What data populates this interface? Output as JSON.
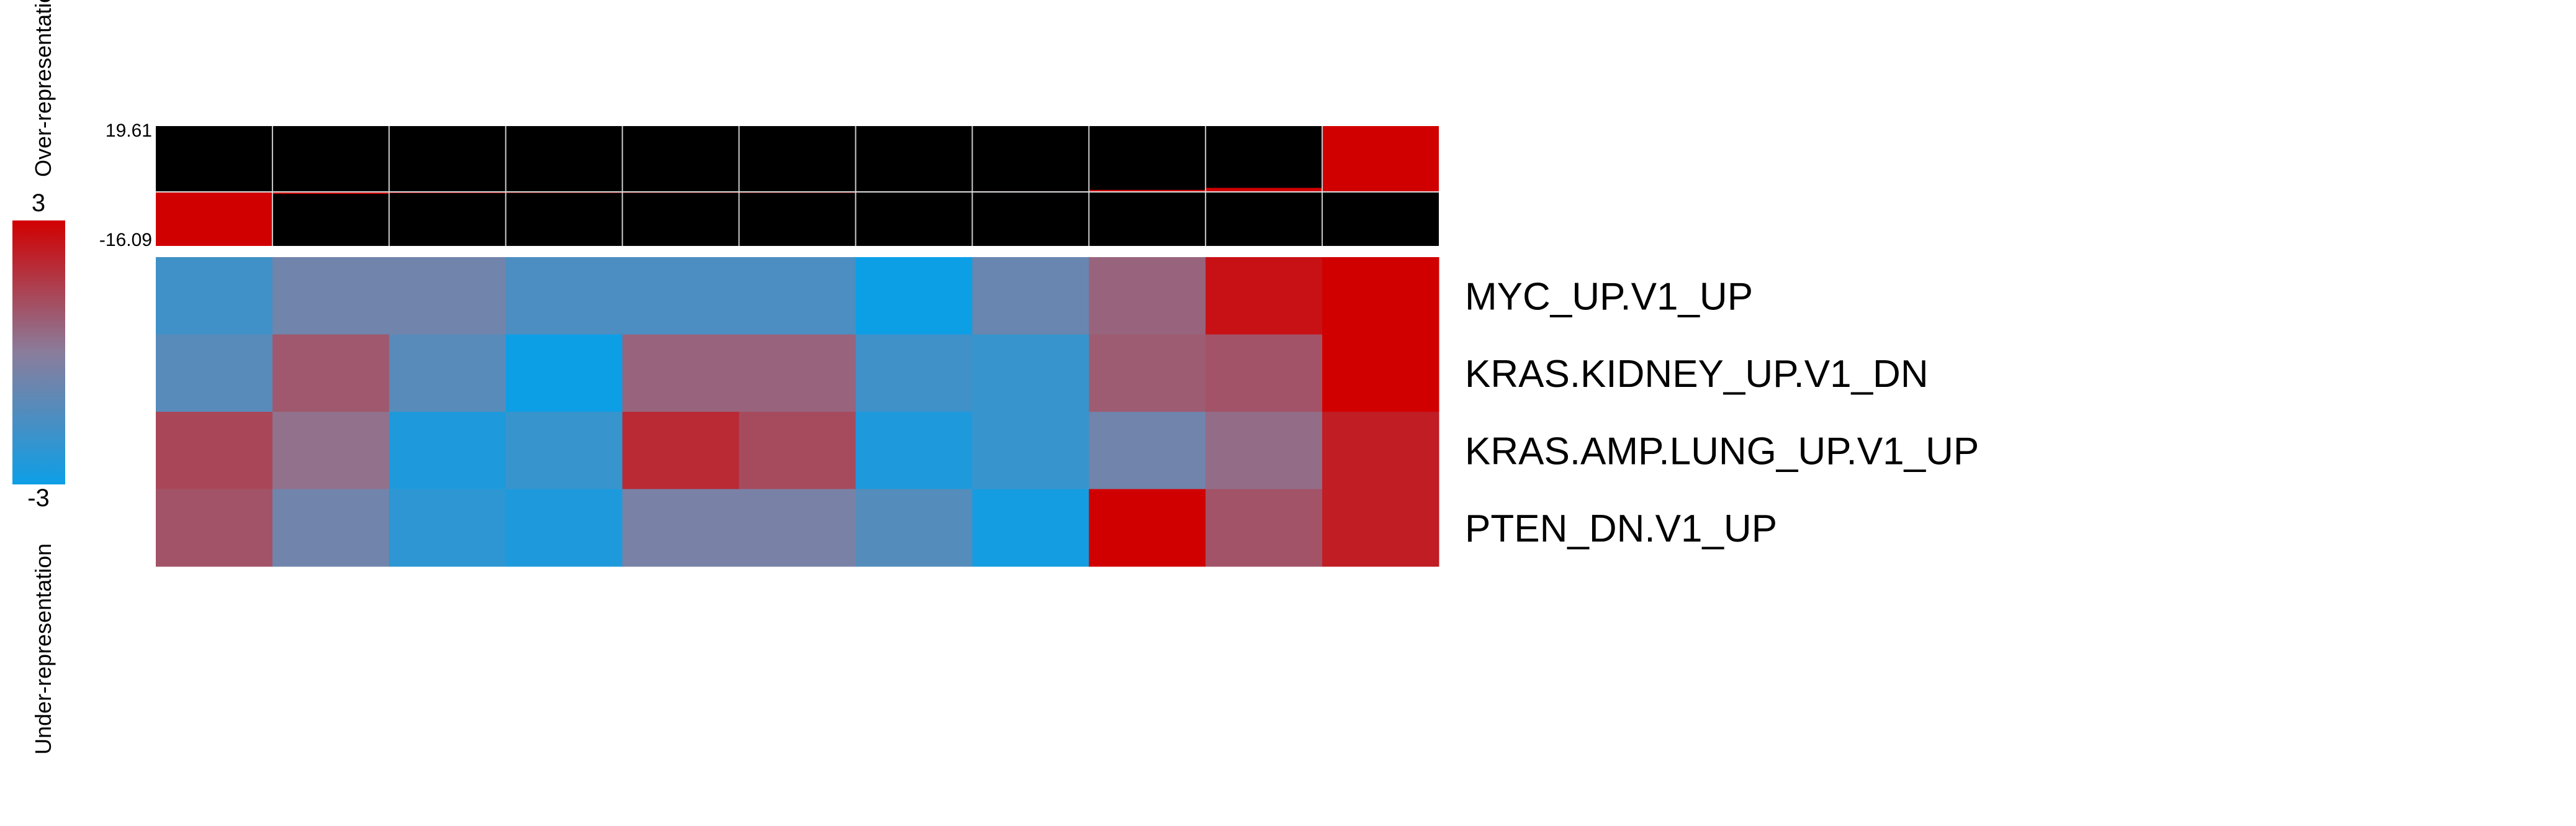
{
  "chart_data": {
    "type": "heatmap",
    "rows": [
      "MYC_UP.V1_UP",
      "KRAS.KIDNEY_UP.V1_DN",
      "KRAS.AMP.LUNG_UP.V1_UP",
      "PTEN_DN.V1_UP"
    ],
    "columns_count": 11,
    "values": [
      [
        -1.8,
        -0.6,
        -0.6,
        -1.5,
        -1.5,
        -1.5,
        -3.0,
        -0.8,
        0.6,
        2.6,
        3.0
      ],
      [
        -1.2,
        0.9,
        -1.2,
        -3.0,
        0.6,
        0.6,
        -1.8,
        -2.0,
        0.8,
        1.0,
        3.0
      ],
      [
        1.3,
        0.3,
        -2.6,
        -2.0,
        2.0,
        1.2,
        -2.6,
        -2.0,
        -0.6,
        0.4,
        2.3
      ],
      [
        1.0,
        -0.6,
        -2.2,
        -2.6,
        -0.4,
        -0.4,
        -1.3,
        -2.8,
        3.0,
        1.0,
        2.3
      ]
    ],
    "colorbar": {
      "min": -3,
      "max": 3,
      "max_label": "3",
      "min_label": "-3",
      "low_color": "#0d9fe6",
      "mid_color": "#8a7d9c",
      "high_color": "#d10000"
    },
    "top_bar": {
      "max_label": "19.61",
      "min_label": "-16.09",
      "max": 19.61,
      "min": -16.09,
      "values": [
        -16.09,
        -0.6,
        -0.35,
        -0.3,
        -0.15,
        -0.1,
        0.1,
        0.2,
        0.6,
        1.2,
        19.61
      ],
      "color": "#d10000",
      "background": "#000000"
    },
    "axis_label_over": "Over-representation",
    "axis_label_under": "Under-representation"
  }
}
